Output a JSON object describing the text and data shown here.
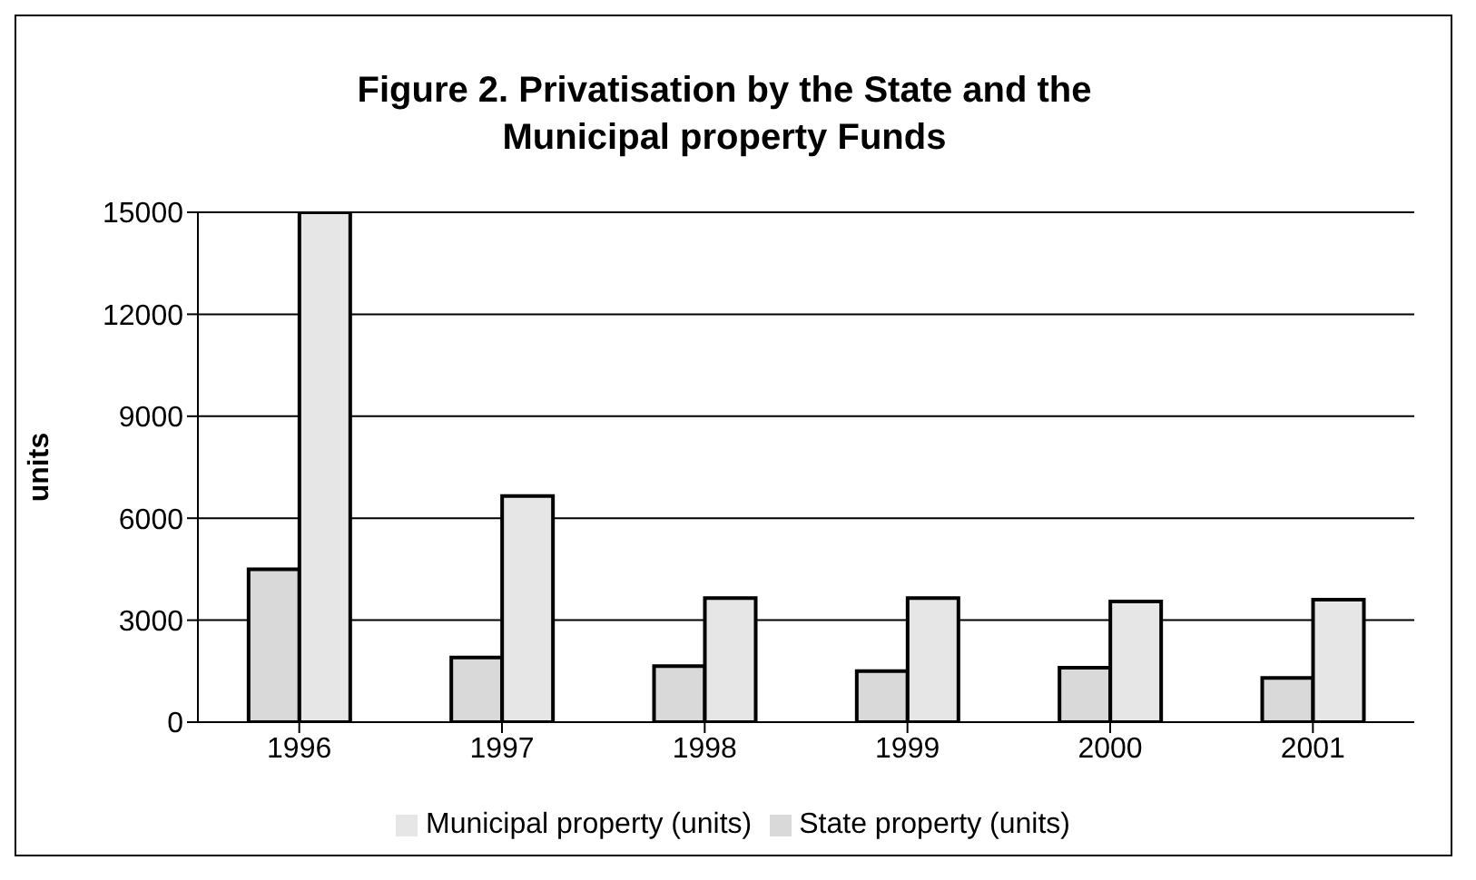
{
  "chart_data": {
    "type": "bar",
    "title": "Figure 2. Privatisation by the State and the Municipal property Funds",
    "ylabel": "units",
    "categories": [
      "1996",
      "1997",
      "1998",
      "1999",
      "2000",
      "2001"
    ],
    "series": [
      {
        "name": "State property (units)",
        "color": "#d9d9d9",
        "values": [
          4500,
          1900,
          1650,
          1500,
          1600,
          1300
        ]
      },
      {
        "name": "Municipal property (units)",
        "color": "#e6e6e6",
        "values": [
          15000,
          6650,
          3650,
          3650,
          3550,
          3600
        ]
      }
    ],
    "ylim": [
      0,
      15000
    ],
    "yticks": [
      0,
      3000,
      6000,
      9000,
      12000,
      15000
    ],
    "grid": "y",
    "legend": "bottom"
  }
}
